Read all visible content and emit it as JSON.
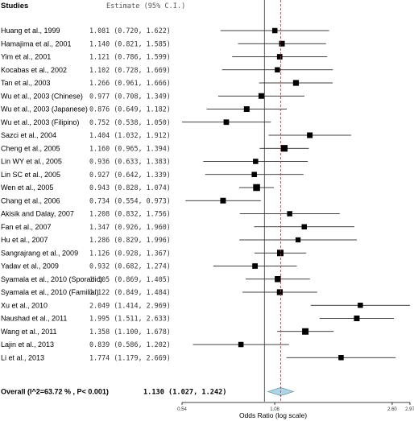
{
  "chart_data": {
    "type": "forest",
    "header": {
      "studies_label": "Studies",
      "estimate_label": "Estimate (95% C.I.)"
    },
    "xlabel": "Odds Ratio (log scale)",
    "xscale": "log",
    "xlim": [
      0.54,
      2.97
    ],
    "xticks": [
      {
        "value": 0.54,
        "label": "0.54"
      },
      {
        "value": 1.08,
        "label": "1.08"
      },
      {
        "value": 2.6,
        "label": "2.60"
      },
      {
        "value": 2.97,
        "label": "2.97"
      }
    ],
    "reference_line": 1,
    "studies": [
      {
        "name": "Huang et al., 1999",
        "or": 1.081,
        "lo": 0.72,
        "hi": 1.622,
        "estimate_text": "1.081 (0.720, 1.622)",
        "weight": 0.5
      },
      {
        "name": "Hamajima et al., 2001",
        "or": 1.14,
        "lo": 0.821,
        "hi": 1.585,
        "estimate_text": "1.140 (0.821, 1.585)",
        "weight": 0.6
      },
      {
        "name": "Yim et al., 2001",
        "or": 1.121,
        "lo": 0.786,
        "hi": 1.599,
        "estimate_text": "1.121 (0.786, 1.599)",
        "weight": 0.55
      },
      {
        "name": "Kocabas et al., 2002",
        "or": 1.102,
        "lo": 0.728,
        "hi": 1.669,
        "estimate_text": "1.102 (0.728, 1.669)",
        "weight": 0.5
      },
      {
        "name": "Tan et al., 2003",
        "or": 1.266,
        "lo": 0.961,
        "hi": 1.666,
        "estimate_text": "1.266 (0.961, 1.666)",
        "weight": 0.65
      },
      {
        "name": "Wu et al., 2003 (Chinese)",
        "or": 0.977,
        "lo": 0.708,
        "hi": 1.349,
        "estimate_text": "0.977 (0.708, 1.349)",
        "weight": 0.6
      },
      {
        "name": "Wu et al., 2003 (Japanese)",
        "or": 0.876,
        "lo": 0.649,
        "hi": 1.182,
        "estimate_text": "0.876 (0.649, 1.182)",
        "weight": 0.6
      },
      {
        "name": "Wu et al., 2003 (Filipino)",
        "or": 0.752,
        "lo": 0.538,
        "hi": 1.05,
        "estimate_text": "0.752 (0.538, 1.050)",
        "weight": 0.55
      },
      {
        "name": "Sazci et al., 2004",
        "or": 1.404,
        "lo": 1.032,
        "hi": 1.912,
        "estimate_text": "1.404 (1.032, 1.912)",
        "weight": 0.6
      },
      {
        "name": "Cheng et al., 2005",
        "or": 1.16,
        "lo": 0.965,
        "hi": 1.394,
        "estimate_text": "1.160 (0.965, 1.394)",
        "weight": 0.85
      },
      {
        "name": "Lin WY et al., 2005",
        "or": 0.936,
        "lo": 0.633,
        "hi": 1.383,
        "estimate_text": "0.936 (0.633, 1.383)",
        "weight": 0.5
      },
      {
        "name": "Lin SC et al., 2005",
        "or": 0.927,
        "lo": 0.642,
        "hi": 1.339,
        "estimate_text": "0.927 (0.642, 1.339)",
        "weight": 0.5
      },
      {
        "name": "Wen et al., 2005",
        "or": 0.943,
        "lo": 0.828,
        "hi": 1.074,
        "estimate_text": "0.943 (0.828, 1.074)",
        "weight": 0.9
      },
      {
        "name": "Chang et al., 2006",
        "or": 0.734,
        "lo": 0.554,
        "hi": 0.973,
        "estimate_text": "0.734 (0.554, 0.973)",
        "weight": 0.6
      },
      {
        "name": "Akisik and Dalay, 2007",
        "or": 1.208,
        "lo": 0.832,
        "hi": 1.756,
        "estimate_text": "1.208 (0.832, 1.756)",
        "weight": 0.5
      },
      {
        "name": "Fan et al., 2007",
        "or": 1.347,
        "lo": 0.926,
        "hi": 1.96,
        "estimate_text": "1.347 (0.926, 1.960)",
        "weight": 0.5
      },
      {
        "name": "Hu et al., 2007",
        "or": 1.286,
        "lo": 0.829,
        "hi": 1.996,
        "estimate_text": "1.286 (0.829, 1.996)",
        "weight": 0.45
      },
      {
        "name": "Sangrajrang et al., 2009",
        "or": 1.126,
        "lo": 0.928,
        "hi": 1.367,
        "estimate_text": "1.126 (0.928, 1.367)",
        "weight": 0.8
      },
      {
        "name": "Yadav et al., 2009",
        "or": 0.932,
        "lo": 0.682,
        "hi": 1.274,
        "estimate_text": "0.932 (0.682, 1.274)",
        "weight": 0.55
      },
      {
        "name": "Syamala et al., 2010 (Sporadic)",
        "or": 1.105,
        "lo": 0.869,
        "hi": 1.405,
        "estimate_text": "1.105 (0.869, 1.405)",
        "weight": 0.7
      },
      {
        "name": "Syamala et al., 2010 (Familial)",
        "or": 1.122,
        "lo": 0.849,
        "hi": 1.484,
        "estimate_text": "1.122 (0.849, 1.484)",
        "weight": 0.65
      },
      {
        "name": "Xu et al., 2010",
        "or": 2.049,
        "lo": 1.414,
        "hi": 2.969,
        "estimate_text": "2.049 (1.414, 2.969)",
        "weight": 0.5
      },
      {
        "name": "Naushad et al., 2011",
        "or": 1.995,
        "lo": 1.511,
        "hi": 2.633,
        "estimate_text": "1.995 (1.511, 2.633)",
        "weight": 0.6
      },
      {
        "name": "Wang et al., 2011",
        "or": 1.358,
        "lo": 1.1,
        "hi": 1.678,
        "estimate_text": "1.358 (1.100, 1.678)",
        "weight": 0.8
      },
      {
        "name": "Lajin et al., 2013",
        "or": 0.839,
        "lo": 0.586,
        "hi": 1.202,
        "estimate_text": "0.839 (0.586, 1.202)",
        "weight": 0.5
      },
      {
        "name": "Li et al., 2013",
        "or": 1.774,
        "lo": 1.179,
        "hi": 2.669,
        "estimate_text": "1.774 (1.179, 2.669)",
        "weight": 0.5
      }
    ],
    "overall": {
      "label": "Overall (I^2=63.72 % , P< 0.001)",
      "or": 1.13,
      "lo": 1.027,
      "hi": 1.242,
      "estimate_text": "1.130 (1.027, 1.242)",
      "color": "#a8d8e8"
    }
  }
}
